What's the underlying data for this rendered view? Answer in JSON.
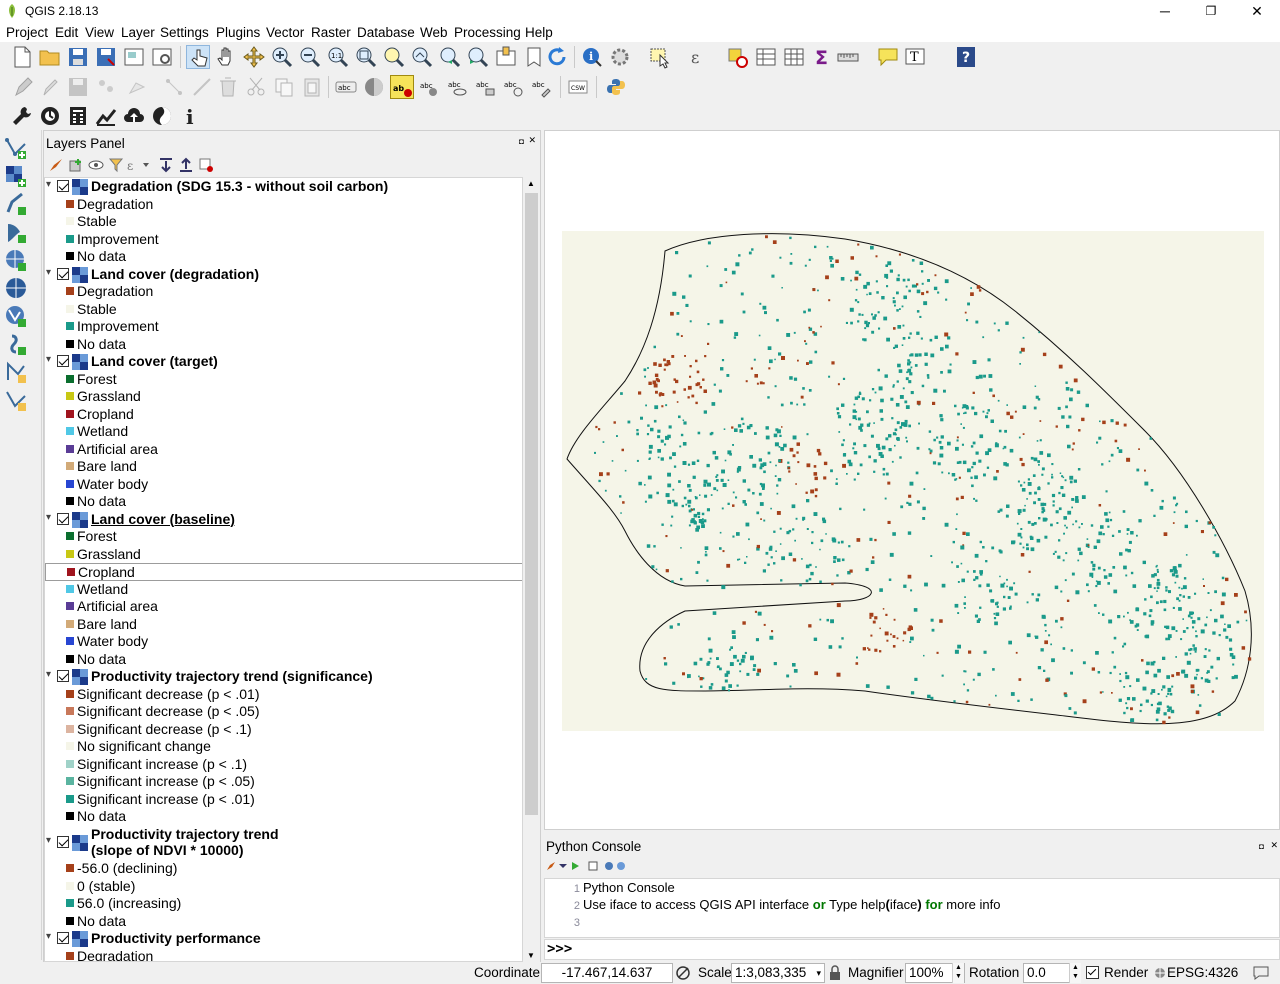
{
  "window": {
    "title": "QGIS 2.18.13",
    "minimize": "─",
    "maximize": "❐",
    "close": "✕"
  },
  "menu": [
    "Project",
    "Edit",
    "View",
    "Layer",
    "Settings",
    "Plugins",
    "Vector",
    "Raster",
    "Database",
    "Web",
    "Processing",
    "Help"
  ],
  "layers_panel": {
    "title": "Layers Panel",
    "layers": [
      {
        "name": "Degradation (SDG 15.3 - without soil carbon)",
        "items": [
          {
            "label": "Degradation",
            "color": "#a5401a"
          },
          {
            "label": "Stable",
            "color": "#f5f5e8"
          },
          {
            "label": "Improvement",
            "color": "#1a9a8a"
          },
          {
            "label": "No data",
            "color": "#000000"
          }
        ]
      },
      {
        "name": "Land cover (degradation)",
        "items": [
          {
            "label": "Degradation",
            "color": "#a5401a"
          },
          {
            "label": "Stable",
            "color": "#f5f5e8"
          },
          {
            "label": "Improvement",
            "color": "#1a9a8a"
          },
          {
            "label": "No data",
            "color": "#000000"
          }
        ]
      },
      {
        "name": "Land cover (target)",
        "items": [
          {
            "label": "Forest",
            "color": "#0a6e2e"
          },
          {
            "label": "Grassland",
            "color": "#c8c814"
          },
          {
            "label": "Cropland",
            "color": "#a0141e"
          },
          {
            "label": "Wetland",
            "color": "#50c8e6"
          },
          {
            "label": "Artificial area",
            "color": "#5a3c96"
          },
          {
            "label": "Bare land",
            "color": "#d2aa78"
          },
          {
            "label": "Water body",
            "color": "#2846d2"
          },
          {
            "label": "No data",
            "color": "#000000"
          }
        ]
      },
      {
        "name": "Land cover (baseline)",
        "items": [
          {
            "label": "Forest",
            "color": "#0a6e2e"
          },
          {
            "label": "Grassland",
            "color": "#c8c814"
          },
          {
            "label": "Cropland",
            "color": "#a0141e"
          },
          {
            "label": "Wetland",
            "color": "#50c8e6"
          },
          {
            "label": "Artificial area",
            "color": "#5a3c96"
          },
          {
            "label": "Bare land",
            "color": "#d2aa78"
          },
          {
            "label": "Water body",
            "color": "#2846d2"
          },
          {
            "label": "No data",
            "color": "#000000"
          }
        ]
      },
      {
        "name": "Productivity trajectory trend (significance)",
        "items": [
          {
            "label": "Significant decrease (p < .01)",
            "color": "#a5401a"
          },
          {
            "label": "Significant decrease (p < .05)",
            "color": "#c8785a"
          },
          {
            "label": "Significant decrease (p < .1)",
            "color": "#dcb4a0"
          },
          {
            "label": "No significant change",
            "color": "#f5f5e8"
          },
          {
            "label": "Significant increase (p < .1)",
            "color": "#a0d2c8"
          },
          {
            "label": "Significant increase (p < .05)",
            "color": "#5ab4a0"
          },
          {
            "label": "Significant increase (p < .01)",
            "color": "#1a9a8a"
          },
          {
            "label": "No data",
            "color": "#000000"
          }
        ]
      },
      {
        "name": "Productivity trajectory trend",
        "name2": "(slope of NDVI * 10000)",
        "items": [
          {
            "label": "-56.0 (declining)",
            "color": "#a5401a"
          },
          {
            "label": "0 (stable)",
            "color": "#f5f5e8"
          },
          {
            "label": "56.0 (increasing)",
            "color": "#1a9a8a"
          },
          {
            "label": "No data",
            "color": "#000000"
          }
        ]
      },
      {
        "name": "Productivity performance",
        "items": [
          {
            "label": "Degradation",
            "color": "#a5401a"
          }
        ]
      }
    ]
  },
  "python_console": {
    "title": "Python Console",
    "lines": [
      {
        "num": "1",
        "text": "Python Console"
      },
      {
        "num": "2",
        "pre": "Use iface to access QGIS API interface ",
        "kw1": "or",
        "mid": " Type help",
        "paren_open": "(",
        "mid2": "iface",
        "paren_close": ")",
        "sp": " ",
        "kw2": "for",
        "post": " more info"
      },
      {
        "num": "3",
        "text": ""
      }
    ],
    "prompt": ">>>"
  },
  "status": {
    "coordinate_label": "Coordinate",
    "coordinate_value": "-17.467,14.637",
    "scale_label": "Scale",
    "scale_value": "1:3,083,335",
    "magnifier_label": "Magnifier",
    "magnifier_value": "100%",
    "rotation_label": "Rotation",
    "rotation_value": "0.0",
    "render_label": "Render",
    "crs": "EPSG:4326"
  },
  "colors": {
    "degradation": "#a5401a",
    "stable": "#f5f5e8",
    "improvement": "#1a9a8a",
    "nodata": "#000000"
  }
}
